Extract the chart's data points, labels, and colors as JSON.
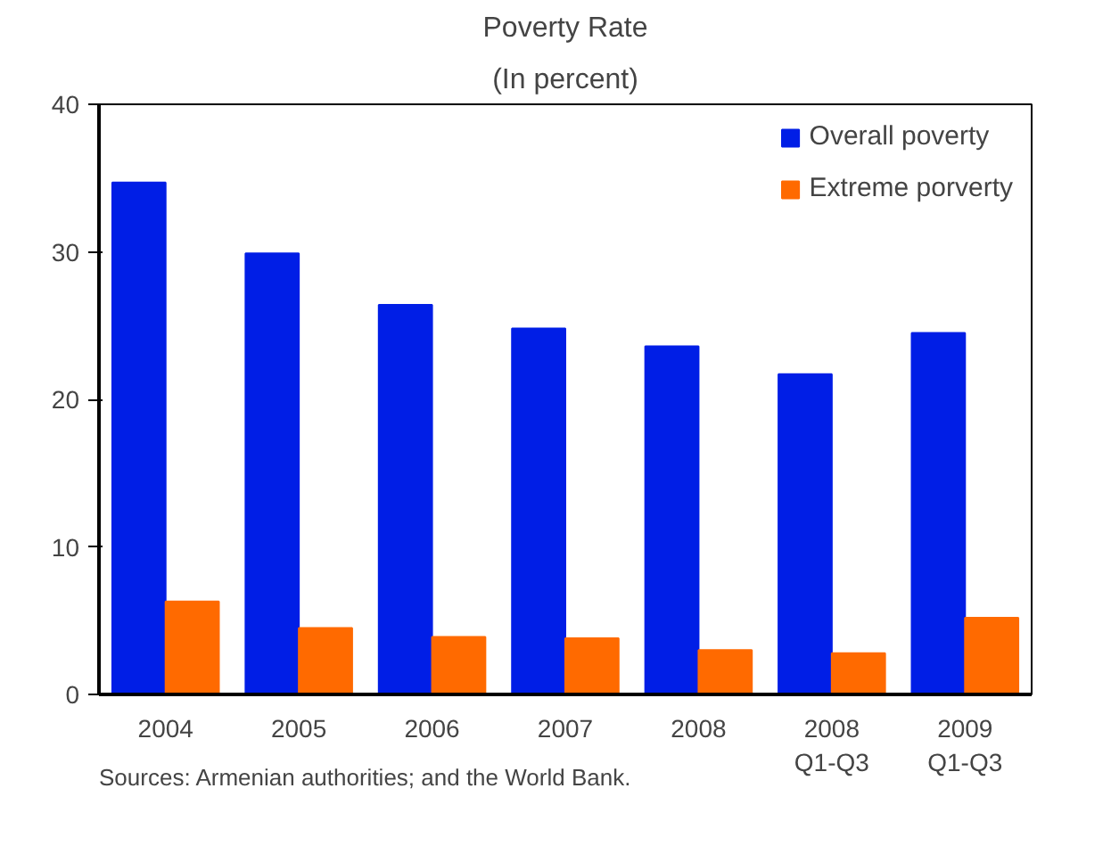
{
  "chart_data": {
    "type": "bar",
    "title": "Poverty Rate",
    "subtitle": "(In percent)",
    "categories": [
      "2004",
      "2005",
      "2006",
      "2007",
      "2008",
      "2008\nQ1-Q3",
      "2009\nQ1-Q3"
    ],
    "series": [
      {
        "name": "Overall poverty",
        "color": "#001ee6",
        "values": [
          34.7,
          29.9,
          26.4,
          24.8,
          23.6,
          21.7,
          24.5
        ]
      },
      {
        "name": "Extreme porverty",
        "color": "#ff6a00",
        "values": [
          6.3,
          4.5,
          3.9,
          3.8,
          3.0,
          2.8,
          5.2
        ]
      }
    ],
    "ylim": [
      0,
      40
    ],
    "yticks": [
      0,
      10,
      20,
      30,
      40
    ],
    "grid": false,
    "legend": "top right",
    "annotations": [
      "Sources: Armenian authorities; and the World Bank."
    ]
  }
}
